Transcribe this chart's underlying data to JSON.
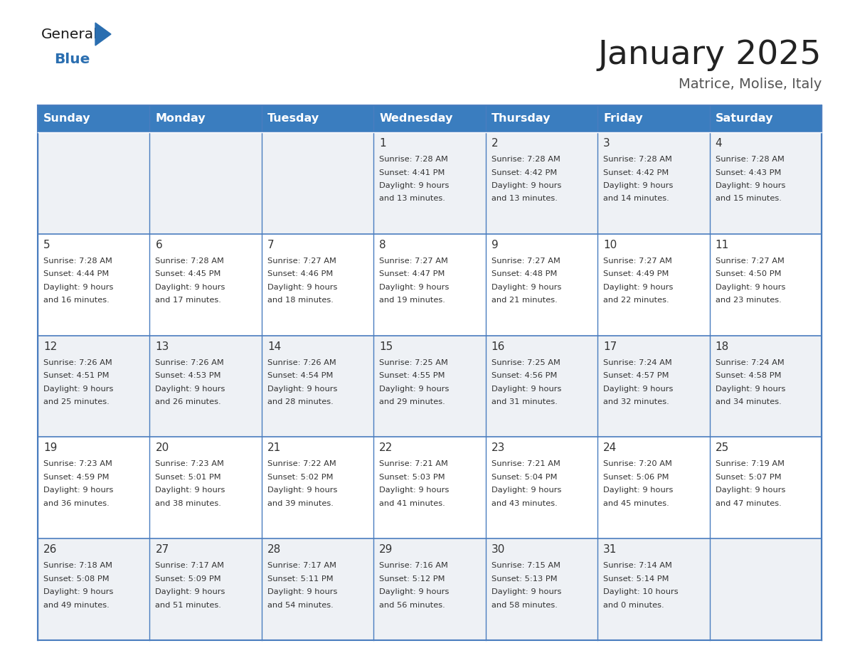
{
  "title": "January 2025",
  "subtitle": "Matrice, Molise, Italy",
  "days_of_week": [
    "Sunday",
    "Monday",
    "Tuesday",
    "Wednesday",
    "Thursday",
    "Friday",
    "Saturday"
  ],
  "header_bg": "#3a7dbf",
  "header_text": "#ffffff",
  "row_bg_even": "#eef1f5",
  "row_bg_odd": "#ffffff",
  "cell_text": "#333333",
  "grid_color": "#4a7dbf",
  "title_color": "#222222",
  "subtitle_color": "#555555",
  "logo_general_color": "#1a1a1a",
  "logo_blue_color": "#2a6eb0",
  "weeks": [
    [
      {
        "day": null,
        "sunrise": null,
        "sunset": null,
        "daylight_h": null,
        "daylight_m": null
      },
      {
        "day": null,
        "sunrise": null,
        "sunset": null,
        "daylight_h": null,
        "daylight_m": null
      },
      {
        "day": null,
        "sunrise": null,
        "sunset": null,
        "daylight_h": null,
        "daylight_m": null
      },
      {
        "day": 1,
        "sunrise": "7:28 AM",
        "sunset": "4:41 PM",
        "daylight_h": "9 hours",
        "daylight_m": "and 13 minutes."
      },
      {
        "day": 2,
        "sunrise": "7:28 AM",
        "sunset": "4:42 PM",
        "daylight_h": "9 hours",
        "daylight_m": "and 13 minutes."
      },
      {
        "day": 3,
        "sunrise": "7:28 AM",
        "sunset": "4:42 PM",
        "daylight_h": "9 hours",
        "daylight_m": "and 14 minutes."
      },
      {
        "day": 4,
        "sunrise": "7:28 AM",
        "sunset": "4:43 PM",
        "daylight_h": "9 hours",
        "daylight_m": "and 15 minutes."
      }
    ],
    [
      {
        "day": 5,
        "sunrise": "7:28 AM",
        "sunset": "4:44 PM",
        "daylight_h": "9 hours",
        "daylight_m": "and 16 minutes."
      },
      {
        "day": 6,
        "sunrise": "7:28 AM",
        "sunset": "4:45 PM",
        "daylight_h": "9 hours",
        "daylight_m": "and 17 minutes."
      },
      {
        "day": 7,
        "sunrise": "7:27 AM",
        "sunset": "4:46 PM",
        "daylight_h": "9 hours",
        "daylight_m": "and 18 minutes."
      },
      {
        "day": 8,
        "sunrise": "7:27 AM",
        "sunset": "4:47 PM",
        "daylight_h": "9 hours",
        "daylight_m": "and 19 minutes."
      },
      {
        "day": 9,
        "sunrise": "7:27 AM",
        "sunset": "4:48 PM",
        "daylight_h": "9 hours",
        "daylight_m": "and 21 minutes."
      },
      {
        "day": 10,
        "sunrise": "7:27 AM",
        "sunset": "4:49 PM",
        "daylight_h": "9 hours",
        "daylight_m": "and 22 minutes."
      },
      {
        "day": 11,
        "sunrise": "7:27 AM",
        "sunset": "4:50 PM",
        "daylight_h": "9 hours",
        "daylight_m": "and 23 minutes."
      }
    ],
    [
      {
        "day": 12,
        "sunrise": "7:26 AM",
        "sunset": "4:51 PM",
        "daylight_h": "9 hours",
        "daylight_m": "and 25 minutes."
      },
      {
        "day": 13,
        "sunrise": "7:26 AM",
        "sunset": "4:53 PM",
        "daylight_h": "9 hours",
        "daylight_m": "and 26 minutes."
      },
      {
        "day": 14,
        "sunrise": "7:26 AM",
        "sunset": "4:54 PM",
        "daylight_h": "9 hours",
        "daylight_m": "and 28 minutes."
      },
      {
        "day": 15,
        "sunrise": "7:25 AM",
        "sunset": "4:55 PM",
        "daylight_h": "9 hours",
        "daylight_m": "and 29 minutes."
      },
      {
        "day": 16,
        "sunrise": "7:25 AM",
        "sunset": "4:56 PM",
        "daylight_h": "9 hours",
        "daylight_m": "and 31 minutes."
      },
      {
        "day": 17,
        "sunrise": "7:24 AM",
        "sunset": "4:57 PM",
        "daylight_h": "9 hours",
        "daylight_m": "and 32 minutes."
      },
      {
        "day": 18,
        "sunrise": "7:24 AM",
        "sunset": "4:58 PM",
        "daylight_h": "9 hours",
        "daylight_m": "and 34 minutes."
      }
    ],
    [
      {
        "day": 19,
        "sunrise": "7:23 AM",
        "sunset": "4:59 PM",
        "daylight_h": "9 hours",
        "daylight_m": "and 36 minutes."
      },
      {
        "day": 20,
        "sunrise": "7:23 AM",
        "sunset": "5:01 PM",
        "daylight_h": "9 hours",
        "daylight_m": "and 38 minutes."
      },
      {
        "day": 21,
        "sunrise": "7:22 AM",
        "sunset": "5:02 PM",
        "daylight_h": "9 hours",
        "daylight_m": "and 39 minutes."
      },
      {
        "day": 22,
        "sunrise": "7:21 AM",
        "sunset": "5:03 PM",
        "daylight_h": "9 hours",
        "daylight_m": "and 41 minutes."
      },
      {
        "day": 23,
        "sunrise": "7:21 AM",
        "sunset": "5:04 PM",
        "daylight_h": "9 hours",
        "daylight_m": "and 43 minutes."
      },
      {
        "day": 24,
        "sunrise": "7:20 AM",
        "sunset": "5:06 PM",
        "daylight_h": "9 hours",
        "daylight_m": "and 45 minutes."
      },
      {
        "day": 25,
        "sunrise": "7:19 AM",
        "sunset": "5:07 PM",
        "daylight_h": "9 hours",
        "daylight_m": "and 47 minutes."
      }
    ],
    [
      {
        "day": 26,
        "sunrise": "7:18 AM",
        "sunset": "5:08 PM",
        "daylight_h": "9 hours",
        "daylight_m": "and 49 minutes."
      },
      {
        "day": 27,
        "sunrise": "7:17 AM",
        "sunset": "5:09 PM",
        "daylight_h": "9 hours",
        "daylight_m": "and 51 minutes."
      },
      {
        "day": 28,
        "sunrise": "7:17 AM",
        "sunset": "5:11 PM",
        "daylight_h": "9 hours",
        "daylight_m": "and 54 minutes."
      },
      {
        "day": 29,
        "sunrise": "7:16 AM",
        "sunset": "5:12 PM",
        "daylight_h": "9 hours",
        "daylight_m": "and 56 minutes."
      },
      {
        "day": 30,
        "sunrise": "7:15 AM",
        "sunset": "5:13 PM",
        "daylight_h": "9 hours",
        "daylight_m": "and 58 minutes."
      },
      {
        "day": 31,
        "sunrise": "7:14 AM",
        "sunset": "5:14 PM",
        "daylight_h": "10 hours",
        "daylight_m": "and 0 minutes."
      },
      {
        "day": null,
        "sunrise": null,
        "sunset": null,
        "daylight_h": null,
        "daylight_m": null
      }
    ]
  ]
}
